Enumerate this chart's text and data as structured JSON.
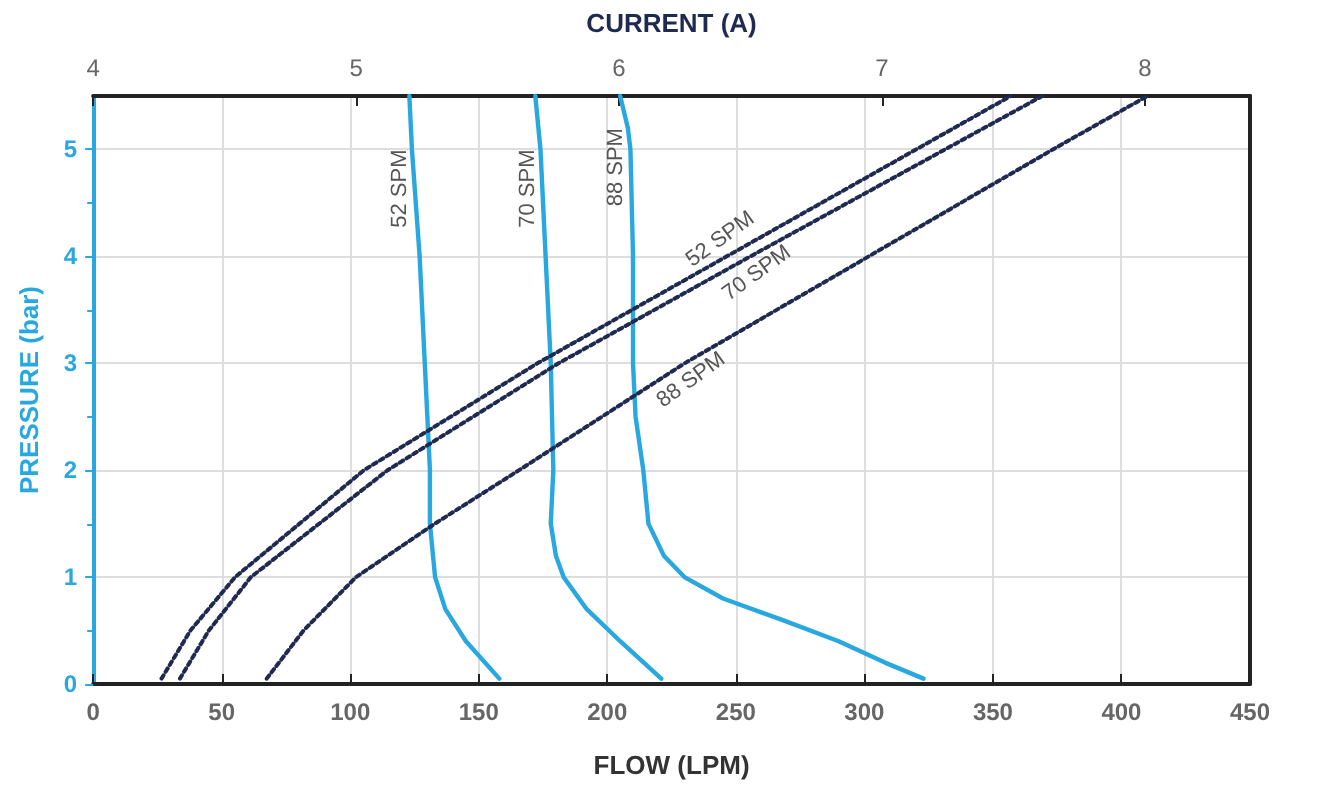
{
  "chart_data": {
    "type": "line",
    "xlabel": "FLOW (LPM)",
    "x2label": "CURRENT (A)",
    "ylabel": "PRESSURE (bar)",
    "xlim": [
      0,
      450
    ],
    "xticks": [
      0,
      50,
      100,
      150,
      200,
      250,
      300,
      350,
      400,
      450
    ],
    "x2lim": [
      4,
      8.4
    ],
    "x2ticks": [
      4,
      5,
      6,
      7,
      8
    ],
    "ylim": [
      0,
      5.5
    ],
    "yticks": [
      0,
      1,
      2,
      3,
      4,
      5
    ],
    "grid": true,
    "legend": false,
    "marker": "none",
    "series": [
      {
        "name": "52 SPM",
        "color": "#29a8df",
        "line_style": "solid",
        "x": [
          158,
          145,
          137,
          133,
          131,
          131,
          129,
          127,
          124,
          123
        ],
        "values": [
          0.05,
          0.4,
          0.7,
          1,
          1.5,
          2,
          3,
          4,
          5,
          5.5
        ]
      },
      {
        "name": "70 SPM",
        "color": "#29a8df",
        "line_style": "solid",
        "x": [
          221,
          205,
          192,
          183,
          180,
          178,
          179,
          178,
          176,
          174,
          172
        ],
        "values": [
          0.05,
          0.4,
          0.7,
          1,
          1.2,
          1.5,
          2,
          3,
          4,
          5,
          5.5
        ]
      },
      {
        "name": "88 SPM",
        "color": "#29a8df",
        "line_style": "solid",
        "x": [
          323,
          308,
          290,
          268,
          245,
          230,
          222,
          216,
          214,
          211,
          210,
          210,
          209,
          208,
          205
        ],
        "values": [
          0.05,
          0.2,
          0.4,
          0.6,
          0.8,
          1,
          1.2,
          1.5,
          2,
          2.5,
          3,
          4,
          5,
          5.2,
          5.5
        ]
      },
      {
        "name": "52 SPM",
        "color": "#1f2a50",
        "line_style": "dotted",
        "axis": "x2",
        "x": [
          4.26,
          4.37,
          4.54,
          5.03,
          5.69,
          6.41,
          7.13,
          7.49
        ],
        "values": [
          0.05,
          0.5,
          1,
          2,
          3,
          4,
          5,
          5.5
        ]
      },
      {
        "name": "70 SPM",
        "color": "#1f2a50",
        "line_style": "dotted",
        "axis": "x2",
        "x": [
          4.33,
          4.44,
          4.6,
          5.12,
          5.77,
          6.5,
          7.24,
          7.61
        ],
        "values": [
          0.05,
          0.5,
          1,
          2,
          3,
          4,
          5,
          5.5
        ]
      },
      {
        "name": "88 SPM",
        "color": "#1f2a50",
        "line_style": "dotted",
        "axis": "x2",
        "x": [
          4.66,
          4.8,
          5.0,
          5.3,
          5.62,
          6.25,
          6.95,
          7.65,
          8.01
        ],
        "values": [
          0.05,
          0.5,
          1,
          1.5,
          2,
          3,
          4,
          5,
          5.5
        ]
      }
    ]
  }
}
